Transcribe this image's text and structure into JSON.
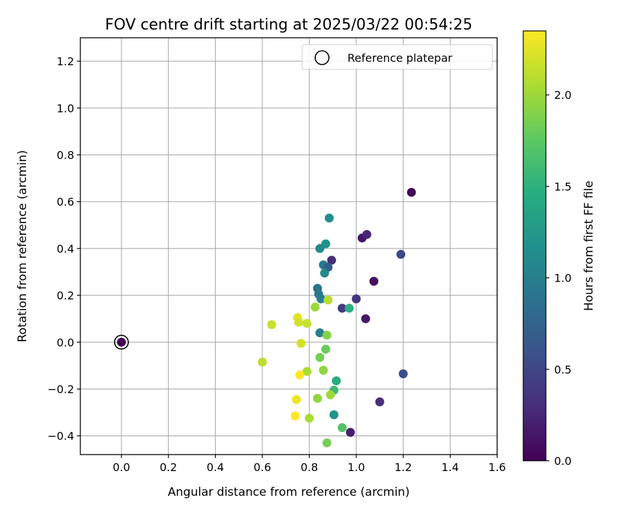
{
  "chart_data": {
    "type": "scatter",
    "title": "FOV centre drift starting at 2025/03/22 00:54:25",
    "xlabel": "Angular distance from reference (arcmin)",
    "ylabel": "Rotation from reference (arcmin)",
    "xlim": [
      -0.175,
      1.6
    ],
    "ylim": [
      -0.48,
      1.3
    ],
    "x_ticks": [
      "0.0",
      "0.2",
      "0.4",
      "0.6",
      "0.8",
      "1.0",
      "1.2",
      "1.4",
      "1.6"
    ],
    "x_tick_values": [
      0.0,
      0.2,
      0.4,
      0.6,
      0.8,
      1.0,
      1.2,
      1.4,
      1.6
    ],
    "y_ticks": [
      "−0.4",
      "−0.2",
      "0.0",
      "0.2",
      "0.4",
      "0.6",
      "0.8",
      "1.0",
      "1.2"
    ],
    "y_tick_values": [
      -0.4,
      -0.2,
      0.0,
      0.2,
      0.4,
      0.6,
      0.8,
      1.0,
      1.2
    ],
    "grid": true,
    "legend": {
      "placement": "top-right",
      "entries": [
        "Reference platepar"
      ]
    },
    "colorbar": {
      "label": "Hours from first FF file",
      "range": [
        0.0,
        2.35
      ],
      "ticks": [
        "0.0",
        "0.5",
        "1.0",
        "1.5",
        "2.0"
      ],
      "tick_values": [
        0.0,
        0.5,
        1.0,
        1.5,
        2.0
      ],
      "colormap": "viridis"
    },
    "reference_point": {
      "x": 0.0,
      "y": 0.0,
      "hours": 0.0
    },
    "points": [
      {
        "x": 1.235,
        "y": 0.64,
        "hours": 0.05
      },
      {
        "x": 1.025,
        "y": 0.445,
        "hours": 0.15
      },
      {
        "x": 1.045,
        "y": 0.46,
        "hours": 0.25
      },
      {
        "x": 1.19,
        "y": 0.375,
        "hours": 0.5
      },
      {
        "x": 0.895,
        "y": 0.35,
        "hours": 0.3
      },
      {
        "x": 1.075,
        "y": 0.26,
        "hours": 0.1
      },
      {
        "x": 1.0,
        "y": 0.185,
        "hours": 0.35
      },
      {
        "x": 0.94,
        "y": 0.145,
        "hours": 0.4
      },
      {
        "x": 1.04,
        "y": 0.1,
        "hours": 0.15
      },
      {
        "x": 1.2,
        "y": -0.135,
        "hours": 0.55
      },
      {
        "x": 1.1,
        "y": -0.255,
        "hours": 0.3
      },
      {
        "x": 0.975,
        "y": -0.385,
        "hours": 0.2
      },
      {
        "x": 0.885,
        "y": 0.53,
        "hours": 1.15
      },
      {
        "x": 0.87,
        "y": 0.42,
        "hours": 1.2
      },
      {
        "x": 0.845,
        "y": 0.4,
        "hours": 1.1
      },
      {
        "x": 0.86,
        "y": 0.33,
        "hours": 0.95
      },
      {
        "x": 0.88,
        "y": 0.32,
        "hours": 0.7
      },
      {
        "x": 0.865,
        "y": 0.295,
        "hours": 1.1
      },
      {
        "x": 0.835,
        "y": 0.23,
        "hours": 0.9
      },
      {
        "x": 0.84,
        "y": 0.205,
        "hours": 0.95
      },
      {
        "x": 0.85,
        "y": 0.185,
        "hours": 1.0
      },
      {
        "x": 0.97,
        "y": 0.145,
        "hours": 1.5
      },
      {
        "x": 0.845,
        "y": 0.04,
        "hours": 1.0
      },
      {
        "x": 0.905,
        "y": -0.31,
        "hours": 1.2
      },
      {
        "x": 0.915,
        "y": -0.165,
        "hours": 1.45
      },
      {
        "x": 0.905,
        "y": -0.205,
        "hours": 1.6
      },
      {
        "x": 0.94,
        "y": -0.365,
        "hours": 1.7
      },
      {
        "x": 0.875,
        "y": -0.43,
        "hours": 1.85
      },
      {
        "x": 0.88,
        "y": 0.18,
        "hours": 2.1
      },
      {
        "x": 0.825,
        "y": 0.15,
        "hours": 2.0
      },
      {
        "x": 0.875,
        "y": 0.03,
        "hours": 1.9
      },
      {
        "x": 0.87,
        "y": -0.03,
        "hours": 1.8
      },
      {
        "x": 0.845,
        "y": -0.065,
        "hours": 1.85
      },
      {
        "x": 0.86,
        "y": -0.12,
        "hours": 1.95
      },
      {
        "x": 0.89,
        "y": -0.225,
        "hours": 2.0
      },
      {
        "x": 0.835,
        "y": -0.24,
        "hours": 1.95
      },
      {
        "x": 0.79,
        "y": -0.125,
        "hours": 2.05
      },
      {
        "x": 0.8,
        "y": -0.325,
        "hours": 2.05
      },
      {
        "x": 0.64,
        "y": 0.075,
        "hours": 2.15
      },
      {
        "x": 0.6,
        "y": -0.085,
        "hours": 2.1
      },
      {
        "x": 0.75,
        "y": 0.105,
        "hours": 2.25
      },
      {
        "x": 0.755,
        "y": 0.085,
        "hours": 2.2
      },
      {
        "x": 0.79,
        "y": 0.08,
        "hours": 2.15
      },
      {
        "x": 0.765,
        "y": -0.005,
        "hours": 2.2
      },
      {
        "x": 0.76,
        "y": -0.14,
        "hours": 2.35
      },
      {
        "x": 0.745,
        "y": -0.245,
        "hours": 2.3
      },
      {
        "x": 0.74,
        "y": -0.315,
        "hours": 2.35
      }
    ]
  }
}
